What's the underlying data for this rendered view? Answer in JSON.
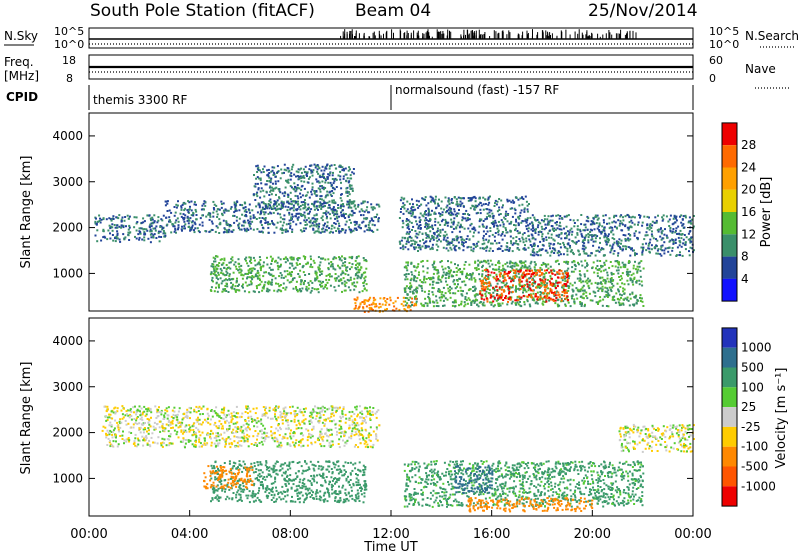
{
  "header": {
    "station": "South Pole Station (fitACF)",
    "beam": "Beam 04",
    "date": "25/Nov/2014"
  },
  "status_panels": {
    "nsky": {
      "label": "N.Sky",
      "ticks": [
        "10^5",
        "10^0"
      ]
    },
    "nsearch": {
      "label": "N.Search",
      "ticks": [
        "10^5",
        "10^0"
      ]
    },
    "freq": {
      "label": "Freq.",
      "unit": "[MHz]",
      "ticks": [
        "18",
        "8"
      ]
    },
    "nave": {
      "label": "Nave",
      "ticks": [
        "60",
        "0"
      ]
    },
    "cpid": {
      "label": "CPID",
      "modes": [
        {
          "name": "themis 3300 RF",
          "start_hour": 0
        },
        {
          "name": "normalsound (fast) -157 RF",
          "start_hour": 12
        }
      ]
    }
  },
  "chart_data": [
    {
      "type": "heatmap",
      "name": "power",
      "xlabel": "",
      "ylabel": "Slant Range [km]",
      "xlim": [
        0,
        24
      ],
      "ylim": [
        180,
        4500
      ],
      "yticks": [
        1000,
        2000,
        3000,
        4000
      ],
      "colorbar": {
        "label": "Power [dB]",
        "ticks": [
          "28",
          "24",
          "20",
          "16",
          "12",
          "8",
          "4"
        ],
        "colors": [
          "#ee0000",
          "#ff6a00",
          "#ffa000",
          "#e8d000",
          "#55bb33",
          "#3a8f6a",
          "#224499",
          "#1111ff"
        ]
      },
      "echo_regions": [
        {
          "t0": 0.2,
          "t1": 3.0,
          "r0": 1700,
          "r1": 2300,
          "level": 8
        },
        {
          "t0": 3.0,
          "t1": 11.5,
          "r0": 1900,
          "r1": 2600,
          "level": 8
        },
        {
          "t0": 6.5,
          "t1": 10.5,
          "r0": 2400,
          "r1": 3400,
          "level": 8
        },
        {
          "t0": 4.8,
          "t1": 11.0,
          "r0": 600,
          "r1": 1400,
          "level": 12
        },
        {
          "t0": 12.3,
          "t1": 17.5,
          "r0": 1500,
          "r1": 2700,
          "level": 8
        },
        {
          "t0": 17.5,
          "t1": 24.0,
          "r0": 1400,
          "r1": 2300,
          "level": 8
        },
        {
          "t0": 12.5,
          "t1": 22.0,
          "r0": 300,
          "r1": 1300,
          "level": 12
        },
        {
          "t0": 15.5,
          "t1": 19.0,
          "r0": 400,
          "r1": 1100,
          "level": 28
        },
        {
          "t0": 10.5,
          "t1": 13.0,
          "r0": 180,
          "r1": 500,
          "level": 24
        }
      ]
    },
    {
      "type": "heatmap",
      "name": "velocity",
      "xlabel": "Time UT",
      "ylabel": "Slant Range [km]",
      "xlim": [
        0,
        24
      ],
      "ylim": [
        180,
        4500
      ],
      "xticks": [
        "00:00",
        "04:00",
        "08:00",
        "12:00",
        "16:00",
        "20:00",
        "00:00"
      ],
      "yticks": [
        1000,
        2000,
        3000,
        4000
      ],
      "colorbar": {
        "label": "Velocity [m s⁻¹]",
        "ticks": [
          "1000",
          "500",
          "100",
          "25",
          "-25",
          "-100",
          "-500",
          "-1000"
        ],
        "colors": [
          "#2233bb",
          "#2e6f8e",
          "#3a9a6a",
          "#55cc33",
          "#cccccc",
          "#ffcc00",
          "#ff8800",
          "#ff5500",
          "#ee0000"
        ]
      },
      "echo_regions": [
        {
          "t0": 0.5,
          "t1": 11.5,
          "r0": 1700,
          "r1": 2600,
          "level": 0
        },
        {
          "t0": 4.8,
          "t1": 11.0,
          "r0": 500,
          "r1": 1400,
          "level": 200
        },
        {
          "t0": 4.5,
          "t1": 6.5,
          "r0": 800,
          "r1": 1300,
          "level": -300
        },
        {
          "t0": 12.5,
          "t1": 22.0,
          "r0": 400,
          "r1": 1400,
          "level": 150
        },
        {
          "t0": 14.5,
          "t1": 16.0,
          "r0": 700,
          "r1": 1300,
          "level": 700
        },
        {
          "t0": 15.0,
          "t1": 20.0,
          "r0": 300,
          "r1": 600,
          "level": -300
        },
        {
          "t0": 21.0,
          "t1": 24.0,
          "r0": 1600,
          "r1": 2200,
          "level": 0
        }
      ]
    }
  ]
}
